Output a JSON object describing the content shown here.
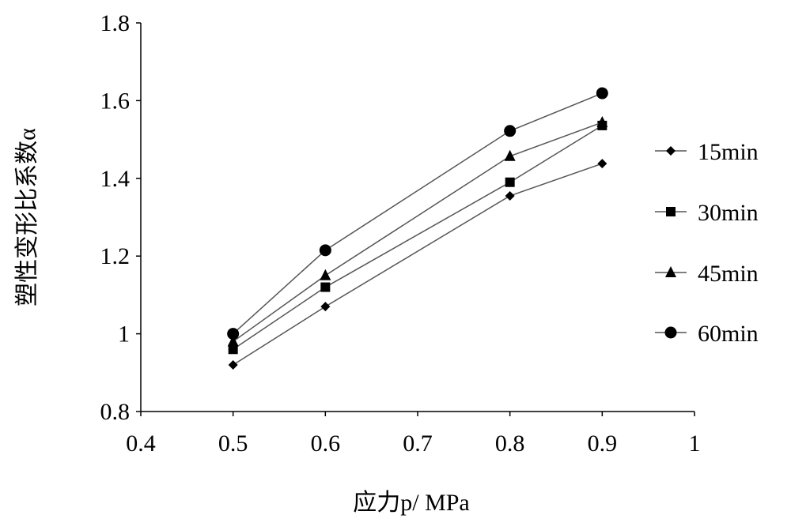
{
  "chart_data": {
    "type": "line",
    "title": "",
    "xlabel": "应力p/ MPa",
    "ylabel": "塑性变形比系数α",
    "xlim": [
      0.4,
      1.0
    ],
    "ylim": [
      0.8,
      1.8
    ],
    "xticks": [
      "0.4",
      "0.5",
      "0.6",
      "0.7",
      "0.8",
      "0.9",
      "1"
    ],
    "yticks": [
      "0.8",
      "1",
      "1.2",
      "1.4",
      "1.6",
      "1.8"
    ],
    "grid": false,
    "legend_position": "right",
    "x": [
      0.5,
      0.6,
      0.8,
      0.9
    ],
    "series": [
      {
        "name": "15min",
        "marker": "diamond",
        "values": [
          0.92,
          1.07,
          1.355,
          1.438
        ]
      },
      {
        "name": "30min",
        "marker": "square",
        "values": [
          0.96,
          1.12,
          1.39,
          1.536
        ]
      },
      {
        "name": "45min",
        "marker": "triangle",
        "values": [
          0.98,
          1.15,
          1.457,
          1.544
        ]
      },
      {
        "name": "60min",
        "marker": "circle",
        "values": [
          1.0,
          1.215,
          1.522,
          1.619
        ]
      }
    ],
    "colors": {
      "line": "#555555",
      "marker": "#000000",
      "axis": "#000000"
    }
  }
}
